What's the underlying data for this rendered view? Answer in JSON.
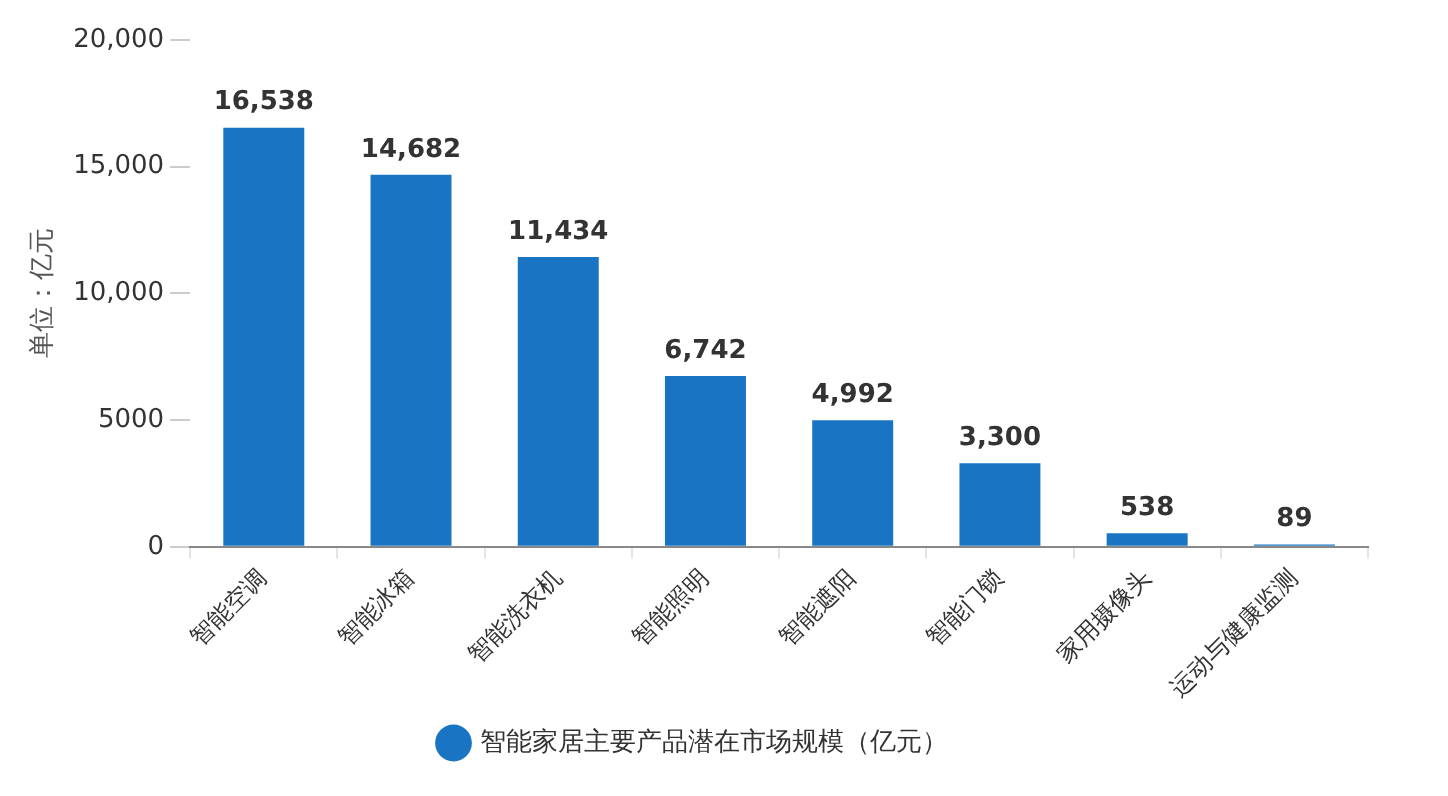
{
  "chart_data": {
    "type": "bar",
    "ylabel": "单位：亿元",
    "categories": [
      "智能空调",
      "智能冰箱",
      "智能洗衣机",
      "智能照明",
      "智能遮阳",
      "智能门锁",
      "家用摄像头",
      "运动与健康监测"
    ],
    "series": [
      {
        "name": "智能家居主要产品潜在市场规模（亿元）",
        "color": "#1a74c4",
        "values": [
          16538,
          14682,
          11434,
          6742,
          4992,
          3300,
          538,
          89
        ],
        "value_labels": [
          "16,538",
          "14,682",
          "11,434",
          "6,742",
          "4,992",
          "3,300",
          "538",
          "89"
        ]
      }
    ],
    "ylim": [
      0,
      20000
    ],
    "yticks": [
      0,
      {
        "value": 5000,
        "label": "5000"
      },
      {
        "value": 10000,
        "label": "10,000"
      },
      {
        "value": 15000,
        "label": "15,000"
      },
      {
        "value": 20000,
        "label": "20,000"
      }
    ],
    "grid": false,
    "legend": "bottom"
  }
}
